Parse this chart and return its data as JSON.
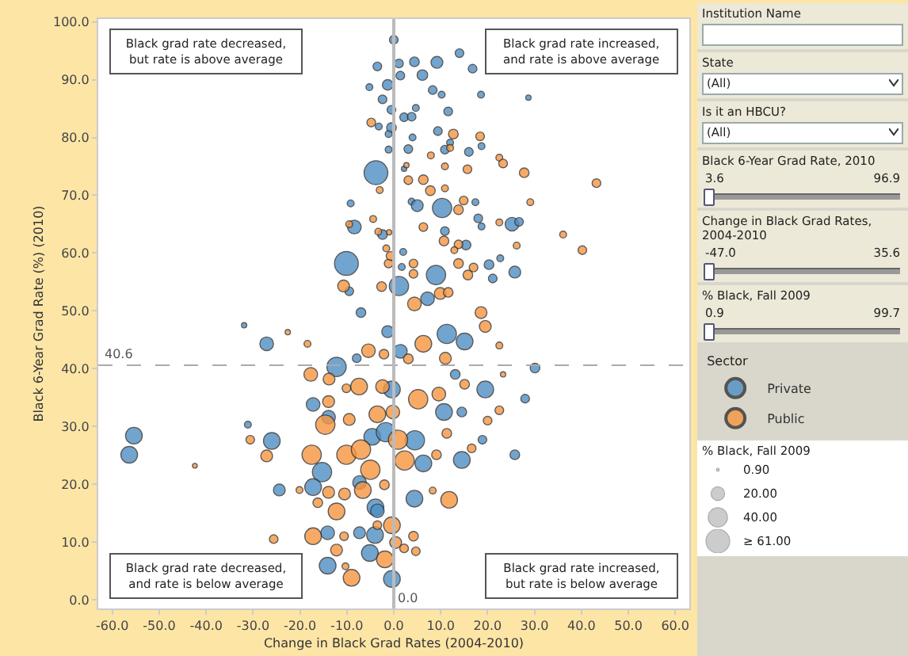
{
  "chart_data": {
    "type": "bubble",
    "xlabel": "Change in Black Grad Rates (2004-2010)",
    "ylabel": "Black 6-Year Grad Rate (%) (2010)",
    "legend_title": "Sector",
    "legend": "right",
    "marker": "circle",
    "grid": false,
    "xlim": [
      -63,
      63
    ],
    "ylim": [
      -1.5,
      100.5
    ],
    "xticks": [
      {
        "value": -60,
        "label": "-60.0"
      },
      {
        "value": -50,
        "label": "-50.0"
      },
      {
        "value": -40,
        "label": "-40.0"
      },
      {
        "value": -30,
        "label": "-30.0"
      },
      {
        "value": -20,
        "label": "-20.0"
      },
      {
        "value": -10,
        "label": "-10.0"
      },
      {
        "value": 0,
        "label": "0.0"
      },
      {
        "value": 10,
        "label": "10.0"
      },
      {
        "value": 20,
        "label": "20.0"
      },
      {
        "value": 30,
        "label": "30.0"
      },
      {
        "value": 40,
        "label": "40.0"
      },
      {
        "value": 50,
        "label": "50.0"
      },
      {
        "value": 60,
        "label": "60.0"
      }
    ],
    "yticks": [
      {
        "value": 0,
        "label": "0.0"
      },
      {
        "value": 10,
        "label": "10.0"
      },
      {
        "value": 20,
        "label": "20.0"
      },
      {
        "value": 30,
        "label": "30.0"
      },
      {
        "value": 40,
        "label": "40.0"
      },
      {
        "value": 50,
        "label": "50.0"
      },
      {
        "value": 60,
        "label": "60.0"
      },
      {
        "value": 70,
        "label": "70.0"
      },
      {
        "value": 80,
        "label": "80.0"
      },
      {
        "value": 90,
        "label": "90.0"
      },
      {
        "value": 100,
        "label": "100.0"
      }
    ],
    "size_legend": [
      {
        "value": 0.9,
        "label": "0.90"
      },
      {
        "value": 20,
        "label": "20.00"
      },
      {
        "value": 40,
        "label": "40.00"
      },
      {
        "value": 61,
        "label": "≥ 61.00"
      }
    ],
    "ref_lines": [
      {
        "axis": "y",
        "value": 40.6,
        "label": "40.6",
        "line_style": "dashed",
        "color": "#aaaaaa"
      },
      {
        "axis": "x",
        "value": 0,
        "label": "0.0",
        "line_style": "solid",
        "color": "#bbbbbb"
      }
    ],
    "annotations": [
      "Black grad rate decreased,\nbut rate is above average",
      "Black grad rate increased,\nand rate is above average",
      "Black grad rate decreased,\nand rate is below average",
      "Black grad rate increased,\nbut rate is below average",
      "Institution Name",
      "State",
      "(All)",
      "Is it an HBCU?",
      "(All)",
      "Black 6-Year Grad Rate, 2010",
      "3.6",
      "96.9",
      "Change in Black Grad Rates, 2004-2010",
      "-47.0",
      "35.6",
      "% Black, Fall 2009",
      "0.9",
      "99.7",
      "% Black, Fall 2009"
    ],
    "series": [
      {
        "name": "Private",
        "color": "#4e8fc4",
        "x": [
          0,
          -3.5,
          1.1,
          4.4,
          9.2,
          14.0,
          16.8,
          1.4,
          6.1,
          -5.2,
          -1.3,
          8.3,
          10.2,
          18.6,
          28.7,
          -2.4,
          -0.5,
          4.7,
          11.6,
          2.2,
          3.8,
          -0.5,
          -3.2,
          9.4,
          4.0,
          -1.1,
          12.0,
          3.1,
          -1.1,
          16.0,
          10.9,
          18.7,
          -3.8,
          2.2,
          3.8,
          5.0,
          10.3,
          17.4,
          -9.2,
          -8.4,
          18.0,
          18.7,
          25.2,
          26.7,
          -2.4,
          10.9,
          15.4,
          2.0,
          -10.1,
          1.7,
          20.3,
          22.7,
          9.0,
          21.1,
          25.8,
          -9.5,
          1.1,
          7.2,
          -7.0,
          -27.1,
          -31.9,
          -1.3,
          1.4,
          -7.9,
          -12.2,
          -0.4,
          11.3,
          15.1,
          13.1,
          19.5,
          30.1,
          28.0,
          10.7,
          14.5,
          -17.2,
          -13.9,
          -31.1,
          -55.4,
          -56.4,
          -26.0,
          -15.3,
          -17.2,
          -24.4,
          -4.6,
          -7.3,
          -3.9,
          -3.5,
          -1.7,
          4.5,
          6.3,
          14.5,
          4.4,
          25.8,
          18.9,
          -14.1,
          -7.3,
          -4.0,
          -5.1,
          -14.1,
          -0.4
        ],
        "values": [
          96.9,
          92.3,
          92.8,
          93.1,
          93.0,
          94.6,
          91.9,
          90.7,
          90.8,
          88.7,
          89.1,
          88.2,
          87.4,
          87.4,
          86.9,
          86.6,
          84.8,
          85.1,
          84.5,
          83.5,
          83.6,
          81.7,
          81.9,
          81.1,
          80.0,
          80.6,
          79.1,
          78.0,
          77.9,
          77.5,
          77.9,
          78.5,
          73.9,
          74.6,
          68.9,
          68.2,
          67.8,
          68.8,
          68.6,
          64.5,
          66.0,
          64.6,
          65.0,
          65.4,
          63.2,
          63.8,
          61.4,
          60.2,
          58.2,
          57.6,
          58.0,
          59.1,
          56.2,
          55.6,
          56.7,
          53.4,
          54.3,
          52.1,
          49.7,
          44.3,
          47.5,
          46.4,
          43.0,
          41.8,
          40.3,
          36.4,
          46.0,
          44.7,
          39.0,
          36.4,
          40.1,
          34.8,
          32.5,
          32.5,
          33.8,
          31.6,
          30.3,
          28.4,
          25.1,
          27.5,
          22.1,
          19.5,
          19.0,
          28.2,
          20.3,
          16.0,
          15.4,
          29.0,
          27.6,
          23.6,
          24.2,
          17.5,
          25.1,
          27.7,
          11.6,
          11.6,
          11.2,
          8.1,
          5.9,
          3.6
        ],
        "sizes": [
          8,
          8,
          8,
          10,
          15,
          8,
          8,
          8,
          12,
          5,
          12,
          8,
          5,
          5,
          3,
          8,
          8,
          5,
          8,
          8,
          8,
          10,
          5,
          8,
          5,
          5,
          5,
          8,
          5,
          8,
          8,
          5,
          61,
          3,
          5,
          15,
          40,
          5,
          5,
          20,
          8,
          5,
          20,
          8,
          10,
          8,
          10,
          5,
          61,
          5,
          10,
          5,
          40,
          8,
          15,
          8,
          40,
          20,
          10,
          20,
          3,
          15,
          20,
          8,
          40,
          30,
          40,
          30,
          10,
          30,
          10,
          8,
          30,
          10,
          20,
          20,
          5,
          30,
          30,
          30,
          40,
          30,
          15,
          30,
          20,
          30,
          20,
          40,
          40,
          30,
          30,
          30,
          10,
          8,
          20,
          15,
          30,
          30,
          30,
          30
        ]
      },
      {
        "name": "Public",
        "color": "#f7963e",
        "x": [
          -4.8,
          12.7,
          18.4,
          12.0,
          22.5,
          23.3,
          7.9,
          15.7,
          27.8,
          43.2,
          2.7,
          10.9,
          6.3,
          3.1,
          7.8,
          -3.0,
          10.9,
          13.8,
          14.9,
          29.1,
          -9.5,
          -4.4,
          22.5,
          36.1,
          -3.3,
          -1.0,
          6.3,
          10.7,
          13.8,
          40.2,
          26.2,
          -1.6,
          12.9,
          -1.1,
          -0.7,
          4.2,
          13.8,
          17.0,
          15.8,
          4.2,
          -10.7,
          -2.6,
          4.4,
          9.9,
          11.6,
          18.6,
          -22.6,
          -18.4,
          -5.4,
          -2.1,
          -17.7,
          -13.8,
          -7.4,
          -10.1,
          -2.4,
          6.3,
          3.1,
          11.0,
          15.1,
          22.5,
          19.5,
          23.3,
          5.2,
          9.6,
          22.5,
          20.0,
          -13.9,
          -14.6,
          -3.5,
          -0.2,
          -9.5,
          -30.6,
          -42.4,
          -27.1,
          -17.5,
          -20.1,
          -16.2,
          -12.2,
          -13.9,
          -10.5,
          -10.1,
          -7.0,
          -5.0,
          -6.6,
          -2.0,
          0.9,
          2.3,
          9.1,
          11.3,
          11.8,
          8.3,
          16.6,
          -0.4,
          0.4,
          4.2,
          4.7,
          -17.2,
          -10.6,
          -12.2,
          -25.6,
          -1.9,
          2.2,
          -10.3,
          -9.0,
          -3.5
        ],
        "values": [
          82.6,
          80.6,
          80.2,
          78.2,
          76.5,
          75.5,
          76.9,
          74.5,
          73.9,
          72.1,
          75.2,
          75.0,
          72.7,
          72.6,
          70.8,
          70.9,
          71.2,
          67.5,
          69.1,
          68.8,
          65.0,
          65.9,
          65.3,
          63.2,
          63.7,
          63.6,
          64.5,
          62.1,
          61.5,
          60.5,
          61.3,
          60.8,
          60.5,
          58.2,
          59.5,
          58.2,
          58.2,
          57.5,
          56.2,
          56.4,
          54.3,
          54.2,
          51.2,
          53.0,
          53.2,
          49.7,
          46.3,
          44.3,
          43.1,
          42.5,
          39.0,
          38.2,
          36.9,
          36.6,
          36.9,
          44.3,
          41.7,
          41.8,
          37.3,
          44.0,
          47.3,
          39.0,
          34.7,
          35.6,
          32.8,
          31.0,
          34.3,
          30.3,
          32.1,
          32.5,
          31.2,
          27.7,
          23.2,
          24.9,
          25.1,
          19.0,
          16.8,
          15.3,
          18.6,
          18.3,
          25.1,
          26.0,
          22.5,
          19.0,
          19.9,
          27.7,
          24.1,
          25.1,
          28.8,
          17.3,
          18.9,
          26.2,
          12.9,
          9.9,
          11.0,
          8.4,
          11.0,
          11.0,
          8.6,
          10.5,
          7.0,
          8.9,
          5.8,
          3.8,
          12.9
        ],
        "sizes": [
          8,
          10,
          8,
          5,
          5,
          8,
          5,
          8,
          10,
          8,
          3,
          5,
          10,
          8,
          10,
          5,
          5,
          10,
          8,
          5,
          5,
          5,
          5,
          5,
          5,
          3,
          8,
          10,
          8,
          8,
          5,
          5,
          5,
          8,
          8,
          8,
          10,
          8,
          10,
          8,
          15,
          10,
          20,
          15,
          10,
          15,
          3,
          5,
          20,
          10,
          20,
          15,
          30,
          8,
          20,
          30,
          10,
          15,
          10,
          5,
          15,
          3,
          40,
          20,
          8,
          8,
          15,
          40,
          30,
          20,
          15,
          8,
          2,
          15,
          40,
          5,
          10,
          30,
          15,
          15,
          40,
          40,
          40,
          30,
          10,
          40,
          40,
          10,
          10,
          30,
          5,
          8,
          30,
          15,
          10,
          8,
          30,
          8,
          15,
          8,
          30,
          8,
          5,
          30,
          8
        ]
      }
    ]
  }
}
